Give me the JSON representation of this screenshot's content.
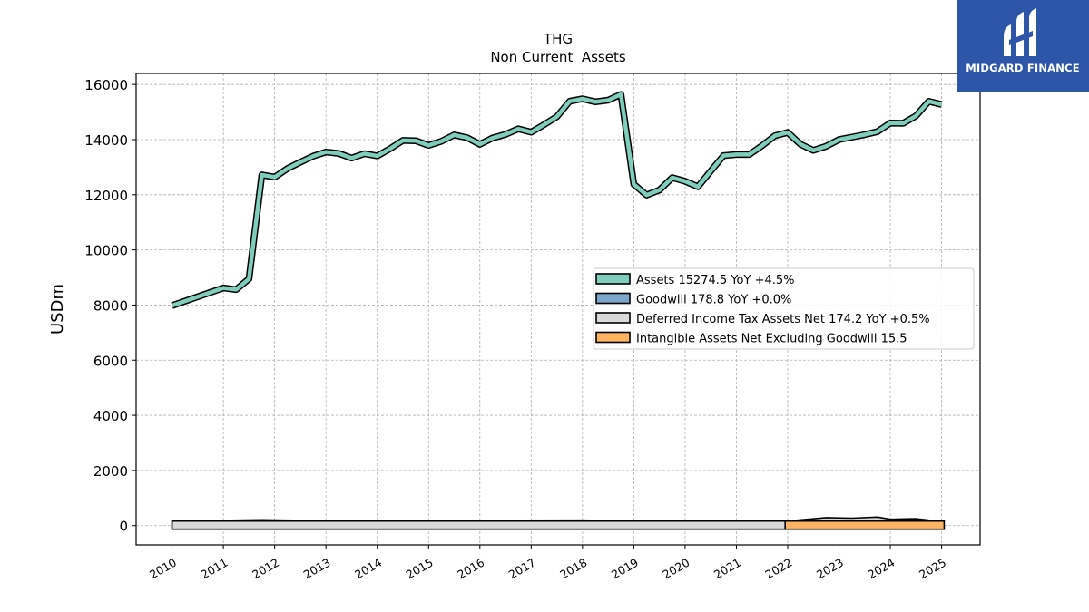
{
  "chart_data": {
    "type": "line",
    "title": "THG",
    "subtitle": "Non Current  Assets",
    "ylabel": "USDm",
    "xlabel": "",
    "ylim": [
      -700,
      16400
    ],
    "xlim": [
      2009.3,
      2025.75
    ],
    "yticks": [
      0,
      2000,
      4000,
      6000,
      8000,
      10000,
      12000,
      14000,
      16000
    ],
    "xticks": [
      "2010",
      "2011",
      "2012",
      "2013",
      "2014",
      "2015",
      "2016",
      "2017",
      "2018",
      "2019",
      "2020",
      "2021",
      "2022",
      "2023",
      "2024",
      "2025"
    ],
    "grid": true,
    "legend_position": "center-right",
    "series": [
      {
        "name": "Assets  15274.5 YoY +4.5%",
        "color": "#7fcdbb",
        "style": "line",
        "points": [
          [
            2010.0,
            7980
          ],
          [
            2010.5,
            8300
          ],
          [
            2011.0,
            8620
          ],
          [
            2011.25,
            8560
          ],
          [
            2011.5,
            8950
          ],
          [
            2011.75,
            12720
          ],
          [
            2012.0,
            12640
          ],
          [
            2012.25,
            12950
          ],
          [
            2012.5,
            13180
          ],
          [
            2012.75,
            13400
          ],
          [
            2013.0,
            13550
          ],
          [
            2013.25,
            13500
          ],
          [
            2013.5,
            13330
          ],
          [
            2013.75,
            13490
          ],
          [
            2014.0,
            13410
          ],
          [
            2014.25,
            13670
          ],
          [
            2014.5,
            13970
          ],
          [
            2014.75,
            13960
          ],
          [
            2015.0,
            13790
          ],
          [
            2015.25,
            13940
          ],
          [
            2015.5,
            14170
          ],
          [
            2015.75,
            14070
          ],
          [
            2016.0,
            13830
          ],
          [
            2016.25,
            14060
          ],
          [
            2016.5,
            14190
          ],
          [
            2016.75,
            14390
          ],
          [
            2017.0,
            14270
          ],
          [
            2017.25,
            14540
          ],
          [
            2017.5,
            14830
          ],
          [
            2017.75,
            15390
          ],
          [
            2018.0,
            15480
          ],
          [
            2018.25,
            15370
          ],
          [
            2018.5,
            15430
          ],
          [
            2018.75,
            15640
          ],
          [
            2019.0,
            12380
          ],
          [
            2019.25,
            11990
          ],
          [
            2019.5,
            12170
          ],
          [
            2019.75,
            12620
          ],
          [
            2020.0,
            12490
          ],
          [
            2020.25,
            12290
          ],
          [
            2020.5,
            12860
          ],
          [
            2020.75,
            13420
          ],
          [
            2021.0,
            13460
          ],
          [
            2021.25,
            13460
          ],
          [
            2021.5,
            13780
          ],
          [
            2021.75,
            14140
          ],
          [
            2022.0,
            14260
          ],
          [
            2022.25,
            13830
          ],
          [
            2022.5,
            13610
          ],
          [
            2022.75,
            13760
          ],
          [
            2023.0,
            14000
          ],
          [
            2023.25,
            14090
          ],
          [
            2023.5,
            14180
          ],
          [
            2023.75,
            14290
          ],
          [
            2024.0,
            14600
          ],
          [
            2024.25,
            14590
          ],
          [
            2024.5,
            14860
          ],
          [
            2024.75,
            15390
          ],
          [
            2025.0,
            15274.5
          ]
        ]
      },
      {
        "name": "Goodwill  178.8 YoY +0.0%",
        "color": "#7ba7cc",
        "style": "band",
        "points": [
          [
            2010.0,
            190
          ],
          [
            2011.0,
            190
          ],
          [
            2011.75,
            210
          ],
          [
            2012.5,
            190
          ],
          [
            2015.0,
            190
          ],
          [
            2018.0,
            200
          ],
          [
            2018.75,
            180
          ],
          [
            2021.0,
            180
          ],
          [
            2022.0,
            178.8
          ],
          [
            2025.0,
            178.8
          ]
        ]
      },
      {
        "name": "Deferred Income Tax Assets Net  174.2 YoY +0.5%",
        "color": "#d9d9d9",
        "style": "band",
        "points": [
          [
            2010.0,
            120
          ],
          [
            2012.0,
            130
          ],
          [
            2016.0,
            140
          ],
          [
            2019.0,
            150
          ],
          [
            2022.0,
            160
          ],
          [
            2022.75,
            290
          ],
          [
            2023.25,
            270
          ],
          [
            2023.75,
            310
          ],
          [
            2024.0,
            230
          ],
          [
            2024.5,
            250
          ],
          [
            2024.75,
            200
          ],
          [
            2025.0,
            174.2
          ]
        ]
      },
      {
        "name": "Intangible Assets Net Excluding Goodwill  15.5",
        "color": "#fdb462",
        "style": "bar",
        "x_start": 2021.95,
        "x_end": 2025.05,
        "value": 15.5
      }
    ]
  },
  "logo": {
    "text": "MIDGARD FINANCE",
    "bg_color": "#2d55a8"
  }
}
